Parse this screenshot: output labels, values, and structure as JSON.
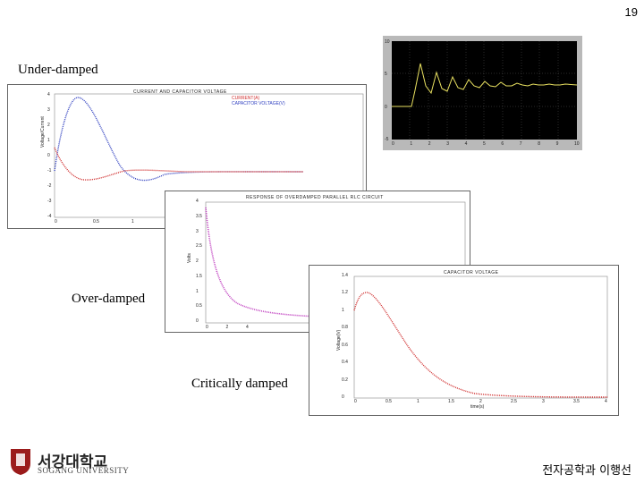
{
  "slide_number": "19",
  "captions": {
    "under_damped": "Under-damped",
    "over_damped": "Over-damped",
    "critically_damped": "Critically damped"
  },
  "plot1": {
    "title": "CURRENT AND CAPACITOR VOLTAGE",
    "legend": [
      "CURRENT(A)",
      "CAPACITOR VOLTAGE(V)"
    ],
    "ylabel": "Voltage/Current",
    "yticks": [
      "4",
      "3",
      "2",
      "1",
      "0",
      "-1",
      "-2",
      "-3",
      "-4"
    ],
    "xticks": [
      "0",
      "0.5",
      "1"
    ]
  },
  "plot2": {
    "title": "RESPONSE OF OVERDAMPED PARALLEL RLC CIRCUIT",
    "ylabel": "Volts",
    "yticks": [
      "4",
      "3.5",
      "3",
      "2.5",
      "2",
      "1.5",
      "1",
      "0.5",
      "0"
    ],
    "xticks": [
      "0",
      "2",
      "4"
    ]
  },
  "plot3": {
    "title": "CAPACITOR VOLTAGE",
    "ylabel": "Voltage(V)",
    "xlabel": "time(s)",
    "yticks": [
      "1.4",
      "1.2",
      "1",
      "0.8",
      "0.6",
      "0.4",
      "0.2",
      "0"
    ],
    "xticks": [
      "0",
      "0.5",
      "1",
      "1.5",
      "2",
      "2.5",
      "3",
      "3.5",
      "4"
    ]
  },
  "scope": {
    "yticks": [
      "10",
      "5",
      "0",
      "-5"
    ],
    "xticks": [
      "0",
      "1",
      "2",
      "3",
      "4",
      "5",
      "6",
      "7",
      "8",
      "9",
      "10"
    ]
  },
  "logo": {
    "korean": "서강대학교",
    "english": "SOGANG UNIVERSITY"
  },
  "footer": "전자공학과 이행선",
  "colors": {
    "series_red": "#d03030",
    "series_blue": "#3040c0",
    "series_magenta": "#c040c0",
    "scope_trace": "#e8e060",
    "logo_red": "#9b1b1b"
  }
}
